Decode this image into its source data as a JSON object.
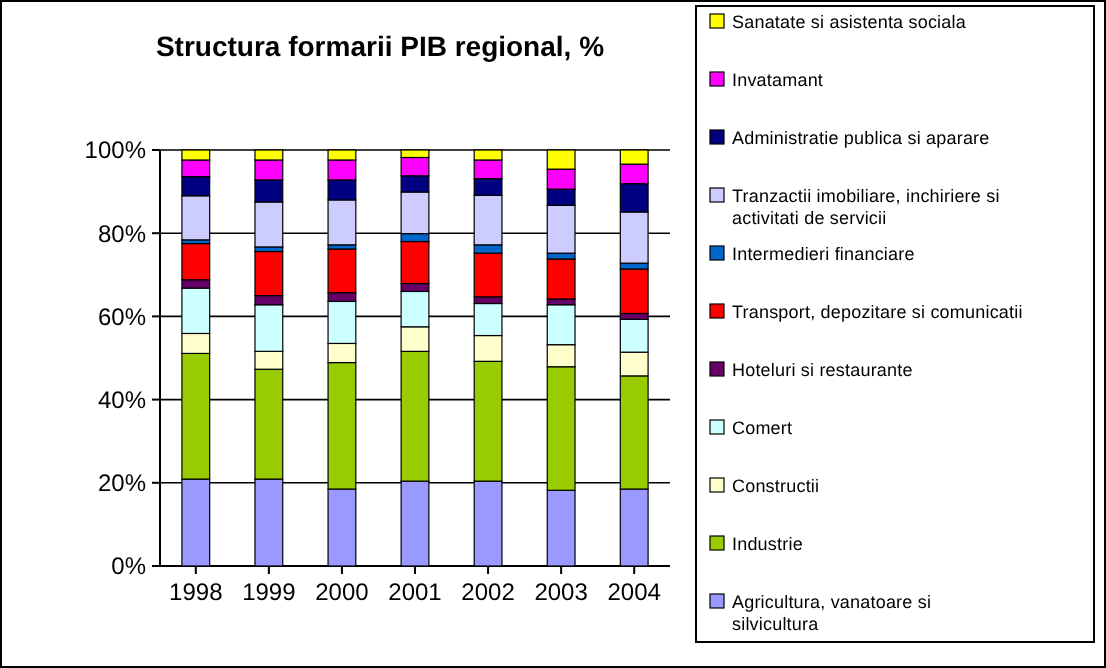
{
  "chart_data": {
    "type": "bar",
    "stacked": true,
    "title": "Structura formarii PIB regional, %",
    "categories": [
      "1998",
      "1999",
      "2000",
      "2001",
      "2002",
      "2003",
      "2004"
    ],
    "ylim": [
      0,
      100
    ],
    "yticks": [
      {
        "value": 0,
        "label": "0%"
      },
      {
        "value": 20,
        "label": "20%"
      },
      {
        "value": 40,
        "label": "40%"
      },
      {
        "value": 60,
        "label": "60%"
      },
      {
        "value": 80,
        "label": "80%"
      },
      {
        "value": 100,
        "label": "100%"
      }
    ],
    "grid": "y",
    "legend": "right",
    "series": [
      {
        "name": "Agricultura, vanatoare si silvicultura",
        "color": "#9999ff",
        "values": [
          20.9,
          20.9,
          18.5,
          20.4,
          20.4,
          18.2,
          18.5
        ]
      },
      {
        "name": "Industrie",
        "color": "#99cc00",
        "values": [
          30.2,
          26.4,
          30.4,
          31.2,
          28.8,
          29.7,
          27.2
        ]
      },
      {
        "name": "Constructii",
        "color": "#ffffcc",
        "values": [
          4.8,
          4.3,
          4.6,
          5.9,
          6.2,
          5.3,
          5.7
        ]
      },
      {
        "name": "Comert",
        "color": "#ccffff",
        "values": [
          10.9,
          11.2,
          10.1,
          8.5,
          7.7,
          9.6,
          7.9
        ]
      },
      {
        "name": "Hoteluri si restaurante",
        "color": "#660066",
        "values": [
          2.0,
          2.2,
          2.1,
          1.9,
          1.6,
          1.4,
          1.4
        ]
      },
      {
        "name": "Transport, depozitare si comunicatii",
        "color": "#ff0000",
        "values": [
          8.7,
          10.6,
          10.5,
          10.1,
          10.5,
          9.6,
          10.7
        ]
      },
      {
        "name": "Intermedieri financiare",
        "color": "#0066cc",
        "values": [
          0.9,
          1.1,
          1.0,
          1.9,
          2.0,
          1.4,
          1.4
        ]
      },
      {
        "name": "Tranzactii imobiliare, inchiriere si activitati de servicii",
        "color": "#ccccff",
        "values": [
          10.6,
          10.8,
          10.8,
          10.0,
          11.9,
          11.5,
          12.3
        ]
      },
      {
        "name": "Administratie publica si aparare",
        "color": "#000080",
        "values": [
          4.6,
          5.3,
          4.8,
          3.9,
          4.0,
          3.9,
          6.8
        ]
      },
      {
        "name": "Invatamant",
        "color": "#ff00ff",
        "values": [
          4.0,
          4.8,
          4.8,
          4.4,
          4.5,
          4.8,
          4.7
        ]
      },
      {
        "name": "Sanatate si asistenta sociala",
        "color": "#ffff00",
        "values": [
          2.4,
          2.4,
          2.4,
          1.8,
          2.4,
          4.6,
          3.4
        ]
      }
    ]
  }
}
